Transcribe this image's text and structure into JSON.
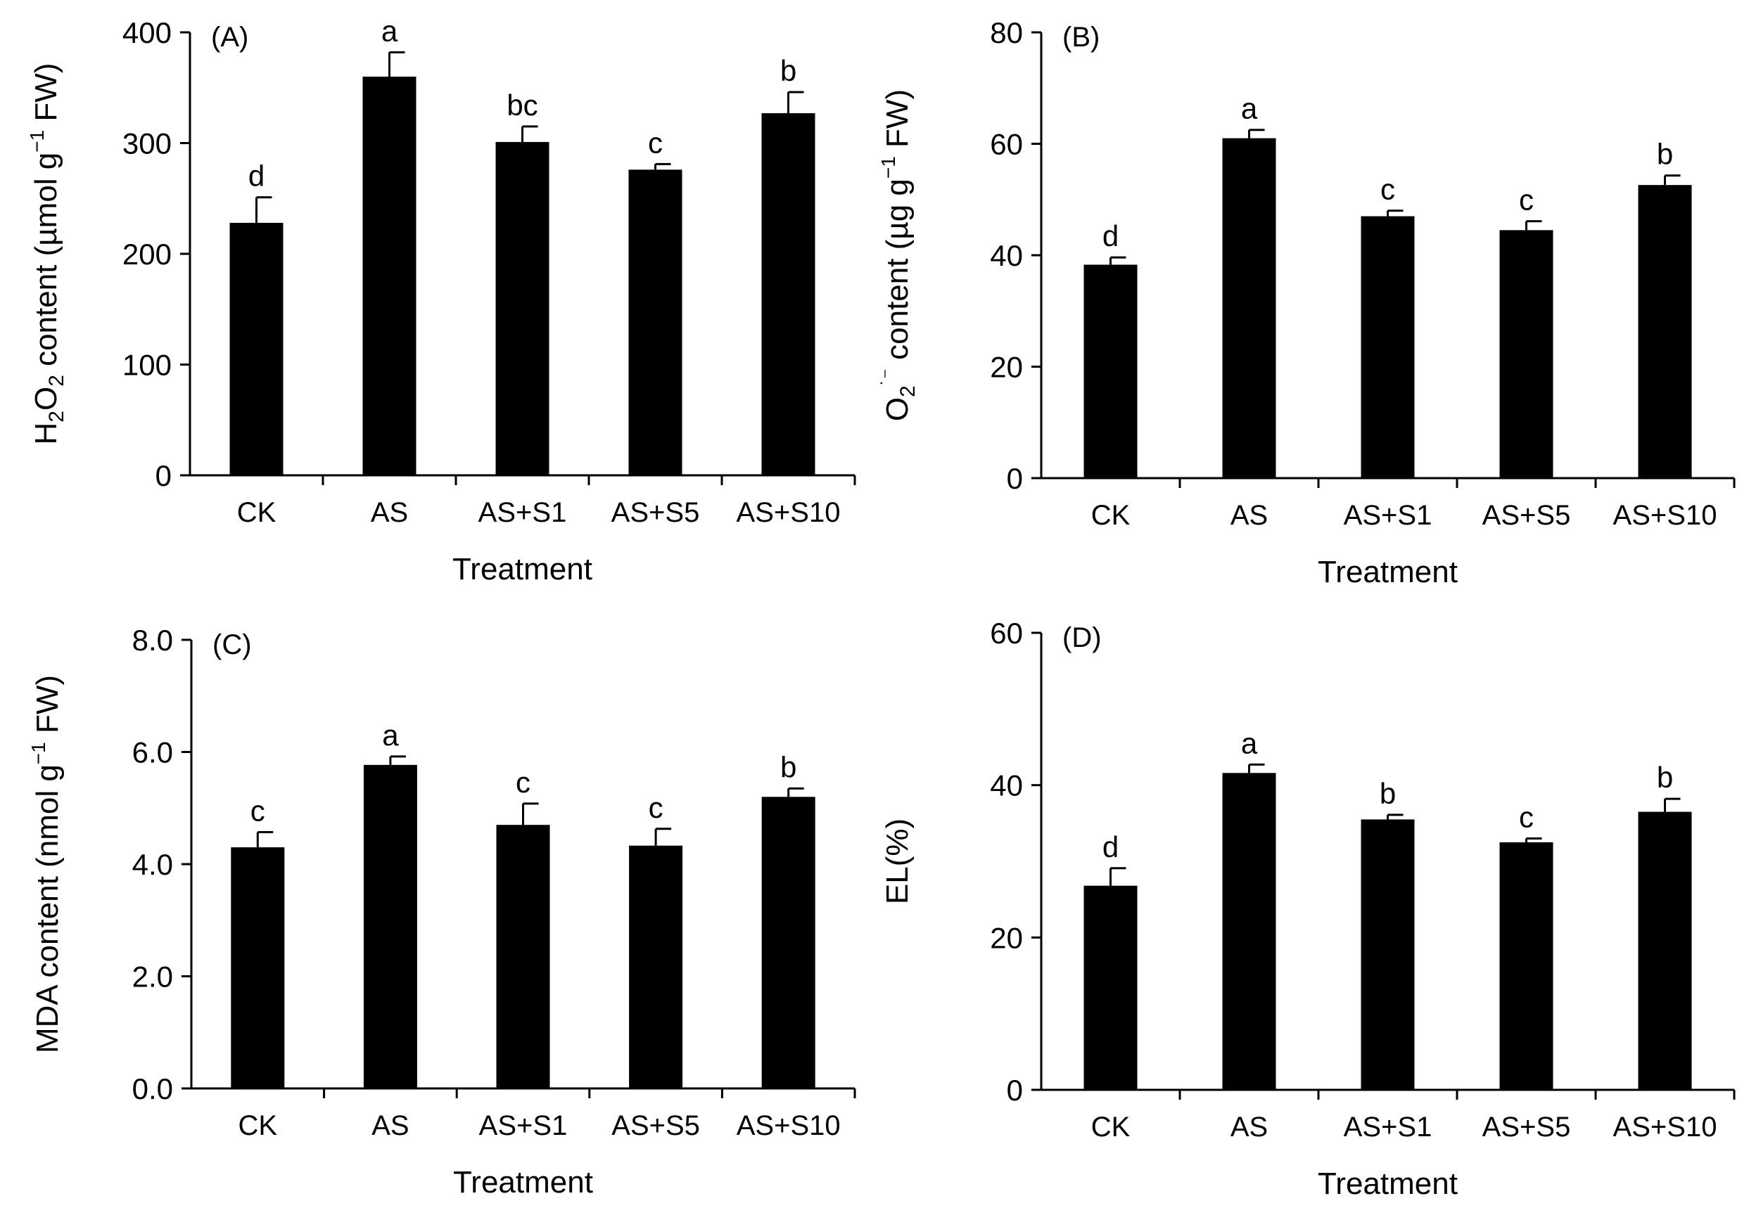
{
  "chart_data": [
    {
      "type": "bar",
      "panel": "(A)",
      "categories": [
        "CK",
        "AS",
        "AS+S1",
        "AS+S5",
        "AS+S10"
      ],
      "values": [
        228,
        360,
        301,
        276,
        327
      ],
      "errors": [
        23,
        22,
        14,
        5,
        19
      ],
      "letters": [
        "d",
        "a",
        "bc",
        "c",
        "b"
      ],
      "ylabel": "H₂O₂ content (µmol g⁻¹ FW)",
      "ylabel_parts": {
        "pre": "H",
        "sub1": "2",
        "mid": "O",
        "sub2": "2",
        "post": " content (µmol g",
        "sup": "−1",
        "end": " FW)"
      },
      "xlabel": "Treatment",
      "ylim": [
        0,
        400
      ],
      "yticks": [
        0,
        100,
        200,
        300,
        400
      ],
      "ytick_labels": [
        "0",
        "100",
        "200",
        "300",
        "400"
      ],
      "bar_color": "#000000"
    },
    {
      "type": "bar",
      "panel": "(B)",
      "categories": [
        "CK",
        "AS",
        "AS+S1",
        "AS+S5",
        "AS+S10"
      ],
      "values": [
        38.3,
        61,
        47,
        44.5,
        52.6
      ],
      "errors": [
        1.3,
        1.5,
        1.0,
        1.6,
        1.7
      ],
      "letters": [
        "d",
        "a",
        "c",
        "c",
        "b"
      ],
      "ylabel": "O₂˙⁻ content (µg g⁻¹ FW)",
      "ylabel_parts": {
        "pre": "O",
        "sub1": "2",
        "sup1": "˙⁻",
        "post": " content (µg g",
        "sup": "−1",
        "end": " FW)"
      },
      "xlabel": "Treatment",
      "ylim": [
        0,
        80
      ],
      "yticks": [
        0,
        20,
        40,
        60,
        80
      ],
      "ytick_labels": [
        "0",
        "20",
        "40",
        "60",
        "80"
      ],
      "bar_color": "#000000"
    },
    {
      "type": "bar",
      "panel": "(C)",
      "categories": [
        "CK",
        "AS",
        "AS+S1",
        "AS+S5",
        "AS+S10"
      ],
      "values": [
        4.3,
        5.77,
        4.7,
        4.33,
        5.2
      ],
      "errors": [
        0.27,
        0.15,
        0.38,
        0.3,
        0.15
      ],
      "letters": [
        "c",
        "a",
        "c",
        "c",
        "b"
      ],
      "ylabel": "MDA content (nmol g⁻¹ FW)",
      "ylabel_parts": {
        "pre": "MDA content (nmol g",
        "sup": "−1",
        "end": " FW)"
      },
      "xlabel": "Treatment",
      "ylim": [
        0,
        8
      ],
      "yticks": [
        0,
        2,
        4,
        6,
        8
      ],
      "ytick_labels": [
        "0.0",
        "2.0",
        "4.0",
        "6.0",
        "8.0"
      ],
      "bar_color": "#000000"
    },
    {
      "type": "bar",
      "panel": "(D)",
      "categories": [
        "CK",
        "AS",
        "AS+S1",
        "AS+S5",
        "AS+S10"
      ],
      "values": [
        26.8,
        41.6,
        35.5,
        32.5,
        36.5
      ],
      "errors": [
        2.3,
        1.1,
        0.6,
        0.5,
        1.7
      ],
      "letters": [
        "d",
        "a",
        "b",
        "c",
        "b"
      ],
      "ylabel": "EL(%)",
      "ylabel_parts": {
        "pre": "EL(%)"
      },
      "xlabel": "Treatment",
      "ylim": [
        0,
        60
      ],
      "yticks": [
        0,
        20,
        40,
        60
      ],
      "ytick_labels": [
        "0",
        "20",
        "40",
        "60"
      ],
      "bar_color": "#000000"
    }
  ]
}
